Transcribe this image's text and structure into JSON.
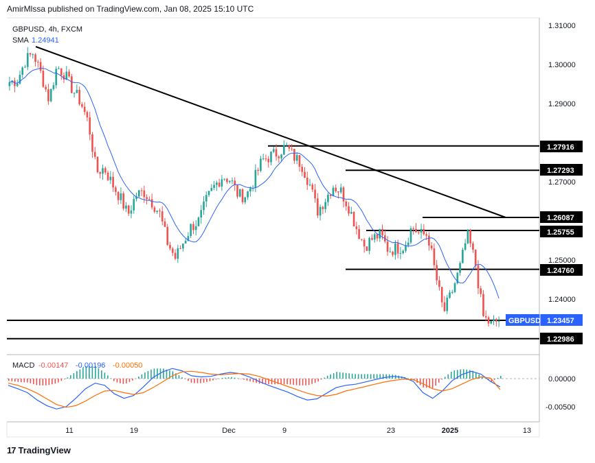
{
  "header": {
    "publisher": "AmirMlssa published on TradingView.com, Jan 08, 2025 15:10 UTC"
  },
  "legend": {
    "symbol": "GBPUSD, 4h, FXCM",
    "sma_label": "SMA",
    "sma_value": "1.24941",
    "macd_label": "MACD",
    "macd_values": [
      "-0.00147",
      "-0.00196",
      "-0.00050"
    ]
  },
  "footer": {
    "brand": "TradingView"
  },
  "colors": {
    "up": "#26a69a",
    "down": "#ef5350",
    "sma": "#2962ff",
    "macd_line": "#2962ff",
    "signal_line": "#ff6d00",
    "price_label_bg": "#2962ff"
  },
  "chart_data": [
    {
      "type": "candlestick",
      "title": "GBPUSD, 4h, FXCM",
      "x_ticks": [
        "11",
        "19",
        "Dec",
        "9",
        "23",
        "2025",
        "13"
      ],
      "y_ticks": [
        "1.31000",
        "1.30000",
        "1.29000",
        "1.27000",
        "1.25000",
        "1.24000"
      ],
      "ylim": [
        1.2255,
        1.3115
      ],
      "horizontal_levels": [
        {
          "label": "1.27916",
          "value": 1.27916
        },
        {
          "label": "1.27293",
          "value": 1.27293
        },
        {
          "label": "1.26087",
          "value": 1.26087
        },
        {
          "label": "1.25755",
          "value": 1.25755
        },
        {
          "label": "1.24760",
          "value": 1.2476
        },
        {
          "label": "1.22986",
          "value": 1.22986
        }
      ],
      "current_price": {
        "symbol": "GBPUSD",
        "value": "1.23457"
      },
      "approx_closes": [
        1.2955,
        1.296,
        1.301,
        1.303,
        1.2975,
        1.291,
        1.2995,
        1.2975,
        1.2935,
        1.2905,
        1.285,
        1.2725,
        1.2735,
        1.2695,
        1.266,
        1.2615,
        1.2665,
        1.2675,
        1.265,
        1.262,
        1.2545,
        1.2505,
        1.2545,
        1.2585,
        1.26,
        1.2655,
        1.269,
        1.2715,
        1.2705,
        1.2665,
        1.2665,
        1.2705,
        1.2755,
        1.2765,
        1.2775,
        1.279,
        1.2765,
        1.2745,
        1.2695,
        1.2625,
        1.2655,
        1.269,
        1.2675,
        1.2635,
        1.258,
        1.2535,
        1.2555,
        1.2565,
        1.2525,
        1.253,
        1.2535,
        1.2585,
        1.2565,
        1.2565,
        1.246,
        1.2365,
        1.2415,
        1.2475,
        1.2565,
        1.2495,
        1.2355,
        1.2335,
        1.2346
      ]
    },
    {
      "type": "line",
      "title": "MACD",
      "series": [
        {
          "name": "",
          "values": [
            -0.0012,
            -0.0018,
            -0.0025,
            -0.0038,
            -0.0048,
            -0.0054,
            -0.005,
            -0.0035,
            -0.0018,
            -0.0008,
            -0.0012,
            -0.0027,
            -0.0035,
            -0.003,
            -0.0015,
            0.0002,
            0.0012,
            0.0018,
            0.0014,
            0.0005,
            0.0003,
            0.0004,
            0.0008,
            0.0011,
            0.0009,
            0.0003,
            -0.0005,
            -0.0012,
            -0.0018,
            -0.0024,
            -0.0032,
            -0.0038,
            -0.0036,
            -0.0026,
            -0.0016,
            -0.0012,
            -0.001,
            -0.0006,
            -0.0002,
            0.0002,
            0.0004,
            0.0002,
            -0.0005,
            -0.0025,
            -0.0035,
            -0.0022,
            -0.0004,
            0.0007,
            0.0013,
            0.0008,
            -0.0005,
            -0.00147
          ]
        },
        {
          "name": "",
          "values": [
            -0.0008,
            -0.0012,
            -0.0018,
            -0.0026,
            -0.0036,
            -0.0046,
            -0.0051,
            -0.0048,
            -0.004,
            -0.003,
            -0.0022,
            -0.0021,
            -0.0025,
            -0.0028,
            -0.0025,
            -0.0016,
            -0.0006,
            0.0005,
            0.0012,
            0.0013,
            0.0011,
            0.0008,
            0.0007,
            0.0008,
            0.0009,
            0.0008,
            0.0004,
            -0.0002,
            -0.0008,
            -0.0014,
            -0.002,
            -0.0026,
            -0.003,
            -0.0031,
            -0.0028,
            -0.0022,
            -0.0018,
            -0.0014,
            -0.001,
            -0.0006,
            -0.0003,
            -0.0001,
            -0.0002,
            -0.0009,
            -0.0018,
            -0.0022,
            -0.0018,
            -0.001,
            -0.0002,
            0.0003,
            0.0001,
            -0.00196
          ]
        }
      ],
      "y_ticks": [
        "0.00000",
        "-0.00500"
      ],
      "ylim": [
        -0.0063,
        0.0032
      ]
    }
  ]
}
